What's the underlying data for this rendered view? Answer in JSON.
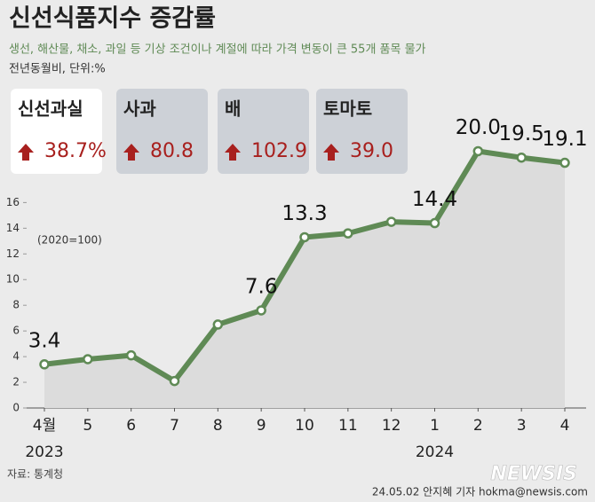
{
  "chart_data": {
    "type": "line",
    "title": "신선식품지수 증감률",
    "subtitle": "생선, 해산물, 채소, 과일 등 기상 조건이나 계절에 따라 가격 변동이 큰 55개 품목 물가",
    "unit_note": "전년동월비, 단위:%",
    "annotation": "(2020=100)",
    "cards": [
      {
        "name": "신선과실",
        "value": "38.7%"
      },
      {
        "name": "사과",
        "value": "80.8"
      },
      {
        "name": "배",
        "value": "102.9"
      },
      {
        "name": "토마토",
        "value": "39.0"
      }
    ],
    "categories": [
      "4월",
      "5",
      "6",
      "7",
      "8",
      "9",
      "10",
      "11",
      "12",
      "1",
      "2",
      "3",
      "4"
    ],
    "year_labels": [
      {
        "index": 0,
        "label": "2023"
      },
      {
        "index": 9,
        "label": "2024"
      }
    ],
    "values": [
      3.4,
      3.8,
      4.1,
      2.1,
      6.5,
      7.6,
      13.3,
      13.6,
      14.5,
      14.4,
      20.0,
      19.5,
      19.1
    ],
    "value_labels": [
      "3.4",
      null,
      null,
      null,
      null,
      "7.6",
      "13.3",
      null,
      null,
      "14.4",
      "20.0",
      "19.5",
      "19.1"
    ],
    "color": "#5f8a55",
    "ylim": [
      0,
      21
    ],
    "yticks": [
      0,
      2,
      4,
      6,
      8,
      10,
      12,
      14,
      16
    ],
    "grid": false,
    "source": "자료: 통계청",
    "credit": "24.05.02 안지혜 기자 hokma@newsis.com",
    "watermark": "NEWSIS"
  }
}
